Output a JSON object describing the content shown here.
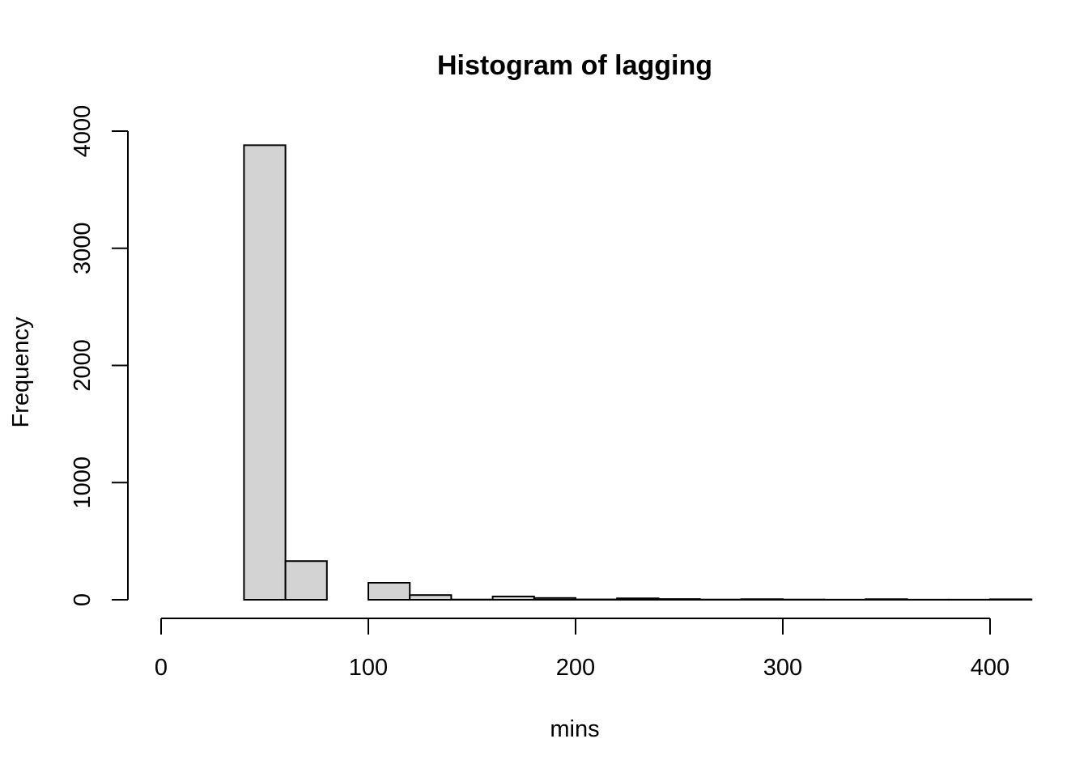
{
  "chart_data": {
    "type": "bar",
    "title": "Histogram of lagging",
    "xlabel": "mins",
    "ylabel": "Frequency",
    "bar_fill": "#d3d3d3",
    "grid": false,
    "xlim": [
      0,
      415
    ],
    "ylim": [
      0,
      4000
    ],
    "x_ticks": [
      0,
      100,
      200,
      300,
      400
    ],
    "x_tick_labels": [
      "0",
      "100",
      "200",
      "300",
      "400"
    ],
    "y_ticks": [
      0,
      1000,
      2000,
      3000,
      4000
    ],
    "y_tick_labels": [
      "0",
      "1000",
      "2000",
      "3000",
      "4000"
    ],
    "bins": [
      {
        "from": 40,
        "to": 60,
        "count": 3880
      },
      {
        "from": 60,
        "to": 80,
        "count": 330
      },
      {
        "from": 80,
        "to": 100,
        "count": 0
      },
      {
        "from": 100,
        "to": 120,
        "count": 145
      },
      {
        "from": 120,
        "to": 140,
        "count": 40
      },
      {
        "from": 140,
        "to": 160,
        "count": 2
      },
      {
        "from": 160,
        "to": 180,
        "count": 28
      },
      {
        "from": 180,
        "to": 200,
        "count": 15
      },
      {
        "from": 200,
        "to": 220,
        "count": 3
      },
      {
        "from": 220,
        "to": 240,
        "count": 12
      },
      {
        "from": 240,
        "to": 260,
        "count": 6
      },
      {
        "from": 260,
        "to": 280,
        "count": 2
      },
      {
        "from": 280,
        "to": 300,
        "count": 5
      },
      {
        "from": 300,
        "to": 320,
        "count": 2
      },
      {
        "from": 320,
        "to": 340,
        "count": 1
      },
      {
        "from": 340,
        "to": 360,
        "count": 5
      },
      {
        "from": 360,
        "to": 380,
        "count": 1
      },
      {
        "from": 380,
        "to": 400,
        "count": 1
      },
      {
        "from": 400,
        "to": 420,
        "count": 4
      }
    ]
  }
}
